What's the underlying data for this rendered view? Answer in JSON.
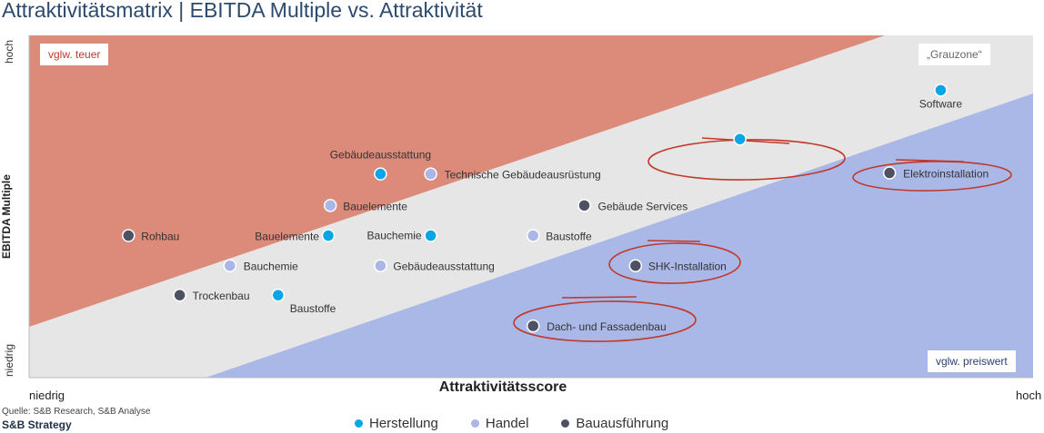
{
  "title": "Attraktivitätsmatrix | EBITDA Multiple vs. Attraktivität",
  "colors": {
    "herstellung": "#0aa5e6",
    "handel": "#aab6e8",
    "bauausfuehrung": "#4d5263",
    "zone_teuer": "#dc8a7a",
    "zone_grau": "#e6e6e6",
    "zone_preiswert": "#aab8e8",
    "highlight_ring": "#c0392b"
  },
  "boxes": {
    "teuer": "vglw. teuer",
    "grauzone": "„Grauzone“",
    "preiswert": "vglw. preiswert"
  },
  "source": "Quelle: S&B Research, S&B Analyse",
  "logo": "S&B Strategy",
  "chart_data": {
    "type": "scatter",
    "title": "Attraktivitätsmatrix | EBITDA Multiple vs. Attraktivität",
    "xlabel": "Attraktivitätsscore",
    "ylabel": "EBITDA Multiple",
    "x_ticks": [
      "niedrig",
      "hoch"
    ],
    "y_ticks": [
      "niedrig",
      "hoch"
    ],
    "xlim": [
      0,
      100
    ],
    "ylim": [
      0,
      100
    ],
    "grid": false,
    "legend_position": "bottom",
    "series": [
      {
        "name": "Herstellung",
        "points": [
          {
            "label": "Software",
            "x": 90.8,
            "y": 84
          },
          {
            "label": "",
            "x": 70.8,
            "y": 69.7
          },
          {
            "label": "Gebäudeausstattung",
            "x": 35,
            "y": 59.5
          },
          {
            "label": "Bauelemente",
            "x": 29.8,
            "y": 41.5
          },
          {
            "label": "Bauchemie",
            "x": 40,
            "y": 41.5
          },
          {
            "label": "Baustoffe",
            "x": 24.8,
            "y": 24.1
          }
        ]
      },
      {
        "name": "Handel",
        "points": [
          {
            "label": "Technische Gebäudeausrüstung",
            "x": 40,
            "y": 59.5
          },
          {
            "label": "Bauelemente",
            "x": 30,
            "y": 50.3
          },
          {
            "label": "Baustoffe",
            "x": 50.2,
            "y": 41.5
          },
          {
            "label": "Bauchemie",
            "x": 20,
            "y": 32.7
          },
          {
            "label": "Gebäudeausstattung",
            "x": 35,
            "y": 32.7
          }
        ]
      },
      {
        "name": "Bauausführung",
        "points": [
          {
            "label": "Elektroinstallation",
            "x": 85.7,
            "y": 59.8
          },
          {
            "label": "Gebäude Services",
            "x": 55.3,
            "y": 50.3
          },
          {
            "label": "Rohbau",
            "x": 9.9,
            "y": 41.5
          },
          {
            "label": "SHK-Installation",
            "x": 60.4,
            "y": 32.7
          },
          {
            "label": "Trockenbau",
            "x": 15,
            "y": 24.1
          },
          {
            "label": "Dach- und Fassadenbau",
            "x": 50.2,
            "y": 15.1
          }
        ]
      }
    ],
    "highlighted": [
      "Technische Gebäudeausrüstung",
      "Elektroinstallation",
      "SHK-Installation",
      "Dach- und Fassadenbau"
    ]
  }
}
